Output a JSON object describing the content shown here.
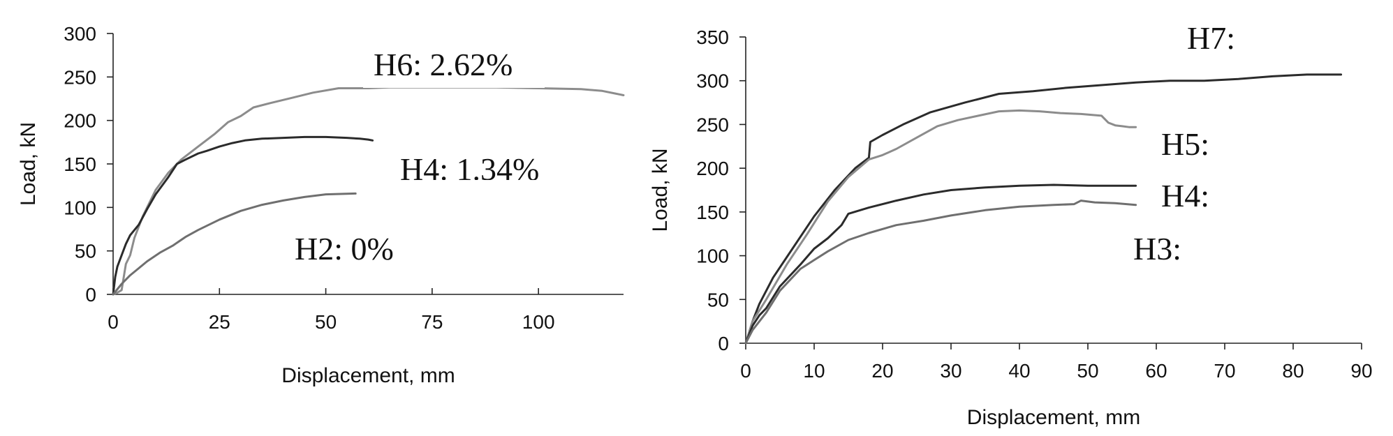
{
  "colors": {
    "dark": "#2b2b2b",
    "mid": "#6f6f6f",
    "light": "#8c8c8c"
  },
  "chart_data": [
    {
      "type": "line",
      "xlabel": "Displacement, mm",
      "ylabel": "Load, kN",
      "xlim": [
        0,
        120
      ],
      "ylim": [
        0,
        300
      ],
      "xticks": [
        0,
        25,
        50,
        75,
        100
      ],
      "yticks": [
        0,
        50,
        100,
        150,
        200,
        250,
        300
      ],
      "grid": false,
      "series": [
        {
          "name": "H6: 2.62%",
          "color": "light",
          "points": [
            [
              0,
              0
            ],
            [
              1,
              2
            ],
            [
              2,
              5
            ],
            [
              3,
              35
            ],
            [
              4,
              45
            ],
            [
              5,
              65
            ],
            [
              7,
              90
            ],
            [
              10,
              120
            ],
            [
              13,
              140
            ],
            [
              16,
              155
            ],
            [
              20,
              170
            ],
            [
              24,
              185
            ],
            [
              27,
              198
            ],
            [
              30,
              205
            ],
            [
              33,
              215
            ],
            [
              37,
              220
            ],
            [
              42,
              226
            ],
            [
              47,
              232
            ],
            [
              53,
              237
            ],
            [
              60,
              237
            ],
            [
              65,
              238
            ],
            [
              70,
              238
            ],
            [
              80,
              238
            ],
            [
              90,
              238
            ],
            [
              100,
              237
            ],
            [
              110,
              236
            ],
            [
              115,
              234
            ],
            [
              118,
              231
            ],
            [
              120,
              229
            ]
          ]
        },
        {
          "name": "H4: 1.34%",
          "color": "dark",
          "points": [
            [
              0,
              0
            ],
            [
              0.5,
              20
            ],
            [
              1,
              32
            ],
            [
              2,
              45
            ],
            [
              3,
              58
            ],
            [
              4,
              68
            ],
            [
              6,
              80
            ],
            [
              8,
              98
            ],
            [
              10,
              115
            ],
            [
              13,
              135
            ],
            [
              15,
              150
            ],
            [
              17,
              155
            ],
            [
              20,
              162
            ],
            [
              22,
              165
            ],
            [
              25,
              170
            ],
            [
              28,
              174
            ],
            [
              31,
              177
            ],
            [
              35,
              179
            ],
            [
              40,
              180
            ],
            [
              45,
              181
            ],
            [
              50,
              181
            ],
            [
              55,
              180
            ],
            [
              58,
              179
            ],
            [
              60,
              178
            ],
            [
              61,
              177
            ]
          ]
        },
        {
          "name": "H2: 0%",
          "color": "mid",
          "points": [
            [
              0,
              0
            ],
            [
              2,
              12
            ],
            [
              4,
              22
            ],
            [
              6,
              30
            ],
            [
              8,
              38
            ],
            [
              11,
              48
            ],
            [
              14,
              56
            ],
            [
              17,
              66
            ],
            [
              20,
              74
            ],
            [
              25,
              86
            ],
            [
              30,
              96
            ],
            [
              35,
              103
            ],
            [
              40,
              108
            ],
            [
              45,
              112
            ],
            [
              50,
              115
            ],
            [
              57,
              116
            ]
          ]
        }
      ]
    },
    {
      "type": "line",
      "xlabel": "Displacement, mm",
      "ylabel": "Load, kN",
      "xlim": [
        0,
        90
      ],
      "ylim": [
        0,
        350
      ],
      "xticks": [
        0,
        10,
        20,
        30,
        40,
        50,
        60,
        70,
        80,
        90
      ],
      "yticks": [
        0,
        50,
        100,
        150,
        200,
        250,
        300,
        350
      ],
      "grid": false,
      "series": [
        {
          "name": "H7:",
          "color": "dark",
          "points": [
            [
              0,
              0
            ],
            [
              1,
              25
            ],
            [
              2,
              45
            ],
            [
              4,
              75
            ],
            [
              7,
              110
            ],
            [
              10,
              145
            ],
            [
              13,
              175
            ],
            [
              16,
              200
            ],
            [
              18,
              212
            ],
            [
              18.2,
              230
            ],
            [
              20,
              238
            ],
            [
              23,
              250
            ],
            [
              27,
              264
            ],
            [
              32,
              275
            ],
            [
              37,
              285
            ],
            [
              42,
              288
            ],
            [
              47,
              292
            ],
            [
              52,
              295
            ],
            [
              57,
              298
            ],
            [
              62,
              300
            ],
            [
              67,
              300
            ],
            [
              72,
              302
            ],
            [
              77,
              305
            ],
            [
              82,
              307
            ],
            [
              87,
              307
            ]
          ]
        },
        {
          "name": "H5:",
          "color": "light",
          "points": [
            [
              0,
              0
            ],
            [
              1,
              25
            ],
            [
              3,
              50
            ],
            [
              6,
              90
            ],
            [
              9,
              125
            ],
            [
              12,
              162
            ],
            [
              15,
              190
            ],
            [
              18,
              210
            ],
            [
              20,
              215
            ],
            [
              22,
              222
            ],
            [
              25,
              235
            ],
            [
              28,
              248
            ],
            [
              31,
              255
            ],
            [
              34,
              260
            ],
            [
              37,
              265
            ],
            [
              40,
              266
            ],
            [
              43,
              265
            ],
            [
              46,
              263
            ],
            [
              49,
              262
            ],
            [
              52,
              260
            ],
            [
              53,
              252
            ],
            [
              54,
              249
            ],
            [
              55,
              248
            ],
            [
              56,
              247
            ],
            [
              57,
              247
            ]
          ]
        },
        {
          "name": "H4:",
          "color": "dark",
          "points": [
            [
              0,
              0
            ],
            [
              1,
              20
            ],
            [
              2,
              32
            ],
            [
              3,
              40
            ],
            [
              5,
              65
            ],
            [
              8,
              90
            ],
            [
              10,
              108
            ],
            [
              12,
              120
            ],
            [
              14,
              135
            ],
            [
              15,
              148
            ],
            [
              18,
              155
            ],
            [
              22,
              163
            ],
            [
              26,
              170
            ],
            [
              30,
              175
            ],
            [
              35,
              178
            ],
            [
              40,
              180
            ],
            [
              45,
              181
            ],
            [
              50,
              180
            ],
            [
              55,
              180
            ],
            [
              57,
              180
            ]
          ]
        },
        {
          "name": "H3:",
          "color": "mid",
          "points": [
            [
              0,
              0
            ],
            [
              1,
              15
            ],
            [
              3,
              35
            ],
            [
              5,
              60
            ],
            [
              8,
              85
            ],
            [
              10,
              95
            ],
            [
              12,
              105
            ],
            [
              15,
              118
            ],
            [
              18,
              126
            ],
            [
              22,
              135
            ],
            [
              26,
              140
            ],
            [
              30,
              146
            ],
            [
              35,
              152
            ],
            [
              40,
              156
            ],
            [
              45,
              158
            ],
            [
              48,
              159
            ],
            [
              49,
              163
            ],
            [
              51,
              161
            ],
            [
              54,
              160
            ],
            [
              57,
              158
            ]
          ]
        }
      ]
    }
  ]
}
